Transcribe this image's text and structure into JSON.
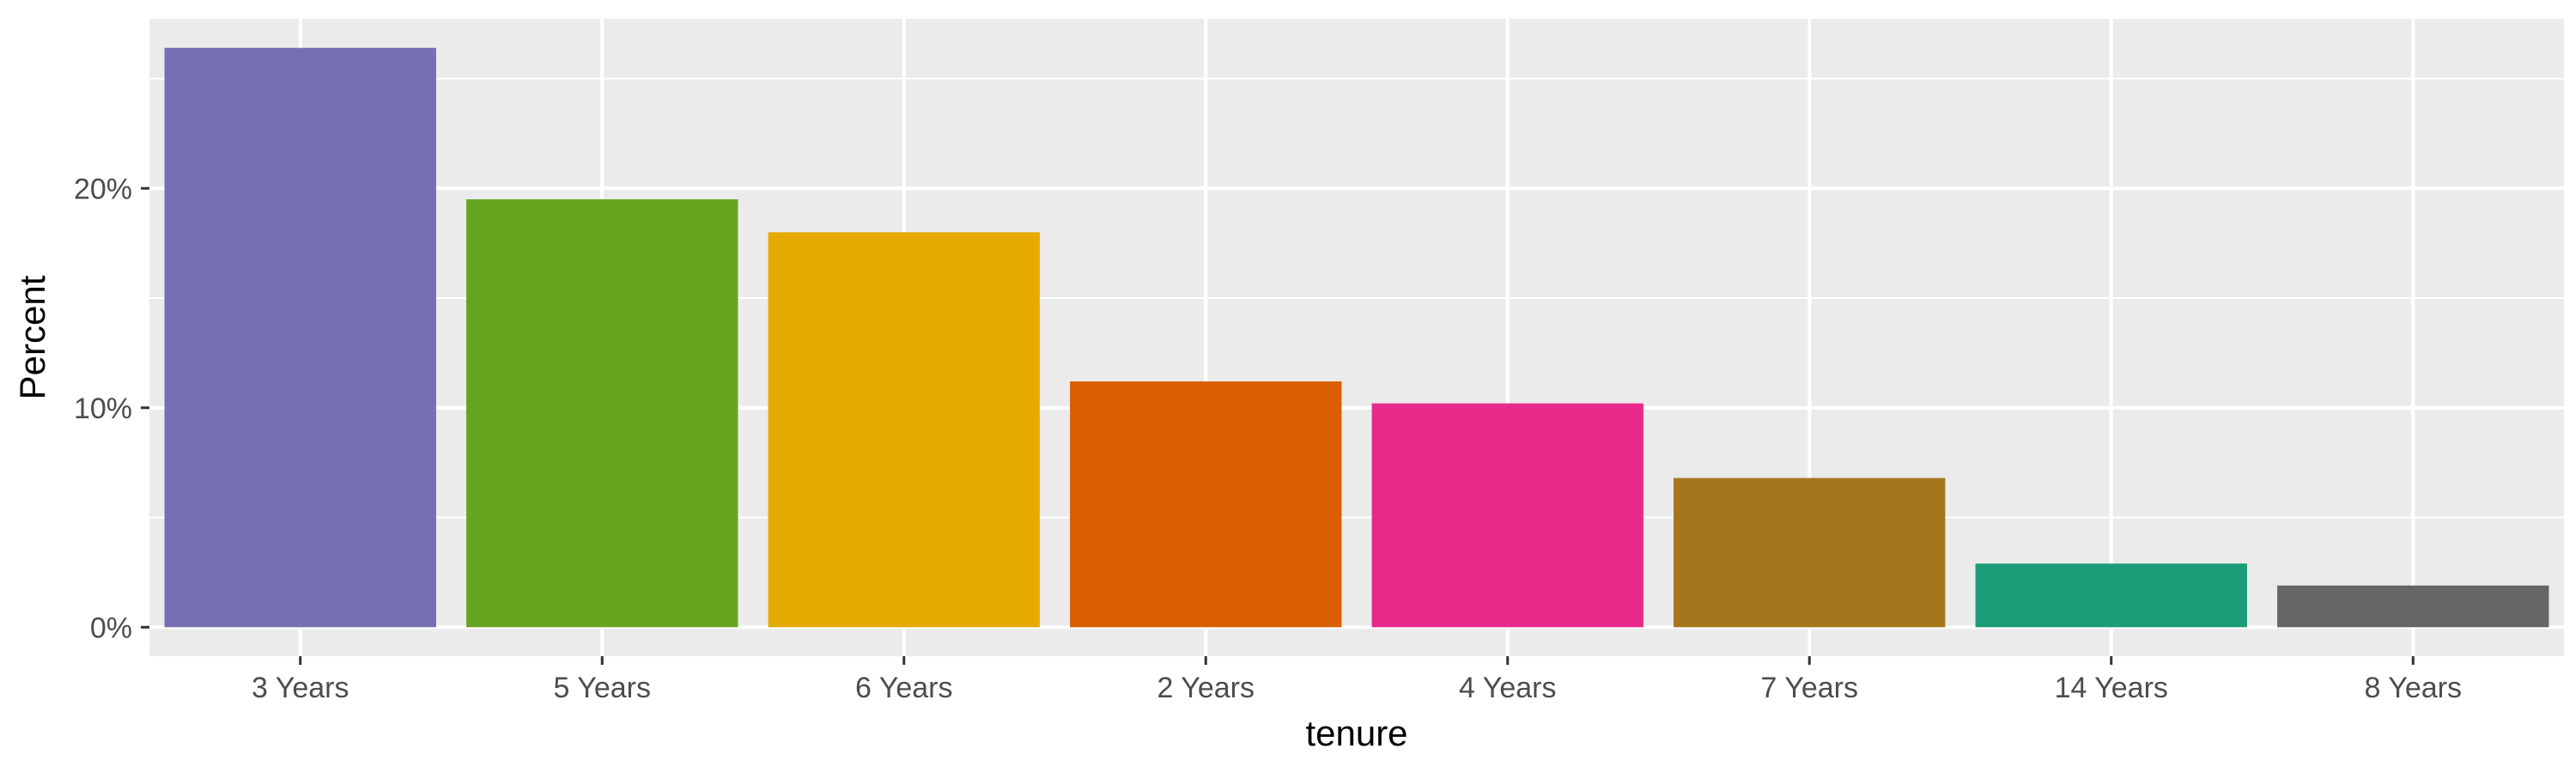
{
  "chart_data": {
    "type": "bar",
    "title": "",
    "xlabel": "tenure",
    "ylabel": "Percent",
    "categories": [
      "3 Years",
      "5 Years",
      "6 Years",
      "2 Years",
      "4 Years",
      "7 Years",
      "14 Years",
      "8 Years"
    ],
    "values": [
      26.4,
      19.5,
      18.0,
      11.2,
      10.2,
      6.8,
      2.9,
      1.9
    ],
    "colors": [
      "#7570B3",
      "#66A61E",
      "#E6AB02",
      "#D95F02",
      "#E7298A",
      "#A6761D",
      "#1B9E77",
      "#666666"
    ],
    "y_ticks": [
      0,
      10,
      20
    ],
    "y_tick_labels": [
      "0%",
      "10%",
      "20%"
    ],
    "ylim": [
      -1.32,
      27.72
    ],
    "grid": true,
    "legend": "none",
    "panel_background": "#EBEBEB",
    "grid_color": "#FFFFFF"
  }
}
